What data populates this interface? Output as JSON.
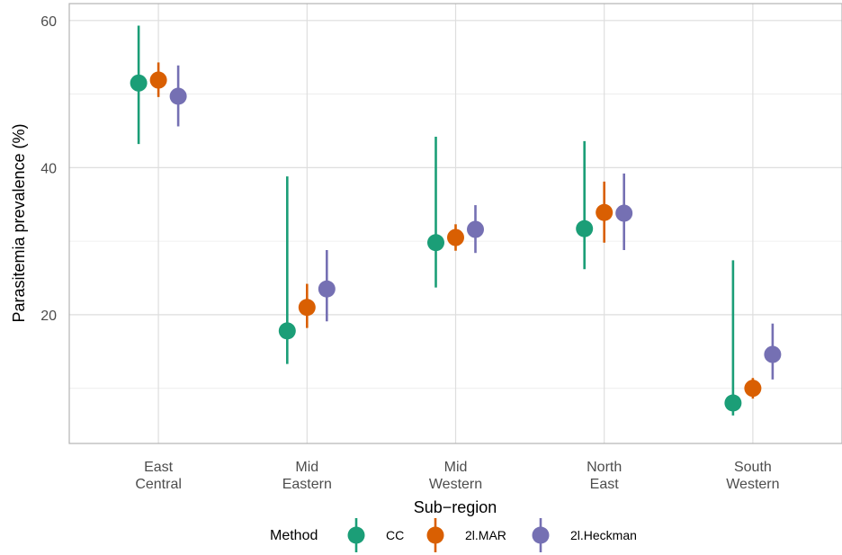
{
  "chart_data": {
    "type": "scatter",
    "subtype": "point-range",
    "xlabel": "Sub−region",
    "ylabel": "Parasitemia prevalence (%)",
    "categories": [
      [
        "East",
        "Central"
      ],
      [
        "Mid",
        "Eastern"
      ],
      [
        "Mid",
        "Western"
      ],
      [
        "North",
        "East"
      ],
      [
        "South",
        "Western"
      ]
    ],
    "ylim": [
      2.5,
      62.3
    ],
    "yticks": [
      20,
      40,
      60
    ],
    "grid": true,
    "legend": {
      "title": "Method",
      "placement": "bottom"
    },
    "series": [
      {
        "name": "CC",
        "color": "#1b9e77",
        "values": [
          51.5,
          17.8,
          29.8,
          31.7,
          8.0
        ],
        "lower": [
          43.2,
          13.3,
          23.7,
          26.2,
          6.3
        ],
        "upper": [
          59.3,
          38.8,
          44.2,
          43.6,
          27.4
        ]
      },
      {
        "name": "2l.MAR",
        "color": "#d95f02",
        "values": [
          51.9,
          21.0,
          30.5,
          33.9,
          10.0
        ],
        "lower": [
          49.6,
          18.2,
          28.7,
          29.8,
          8.6
        ],
        "upper": [
          54.3,
          24.2,
          32.3,
          38.1,
          11.4
        ]
      },
      {
        "name": "2l.Heckman",
        "color": "#7570b3",
        "values": [
          49.7,
          23.5,
          31.6,
          33.8,
          14.6
        ],
        "lower": [
          45.6,
          19.1,
          28.4,
          28.8,
          11.2
        ],
        "upper": [
          53.9,
          28.8,
          34.9,
          39.2,
          18.8
        ]
      }
    ]
  }
}
